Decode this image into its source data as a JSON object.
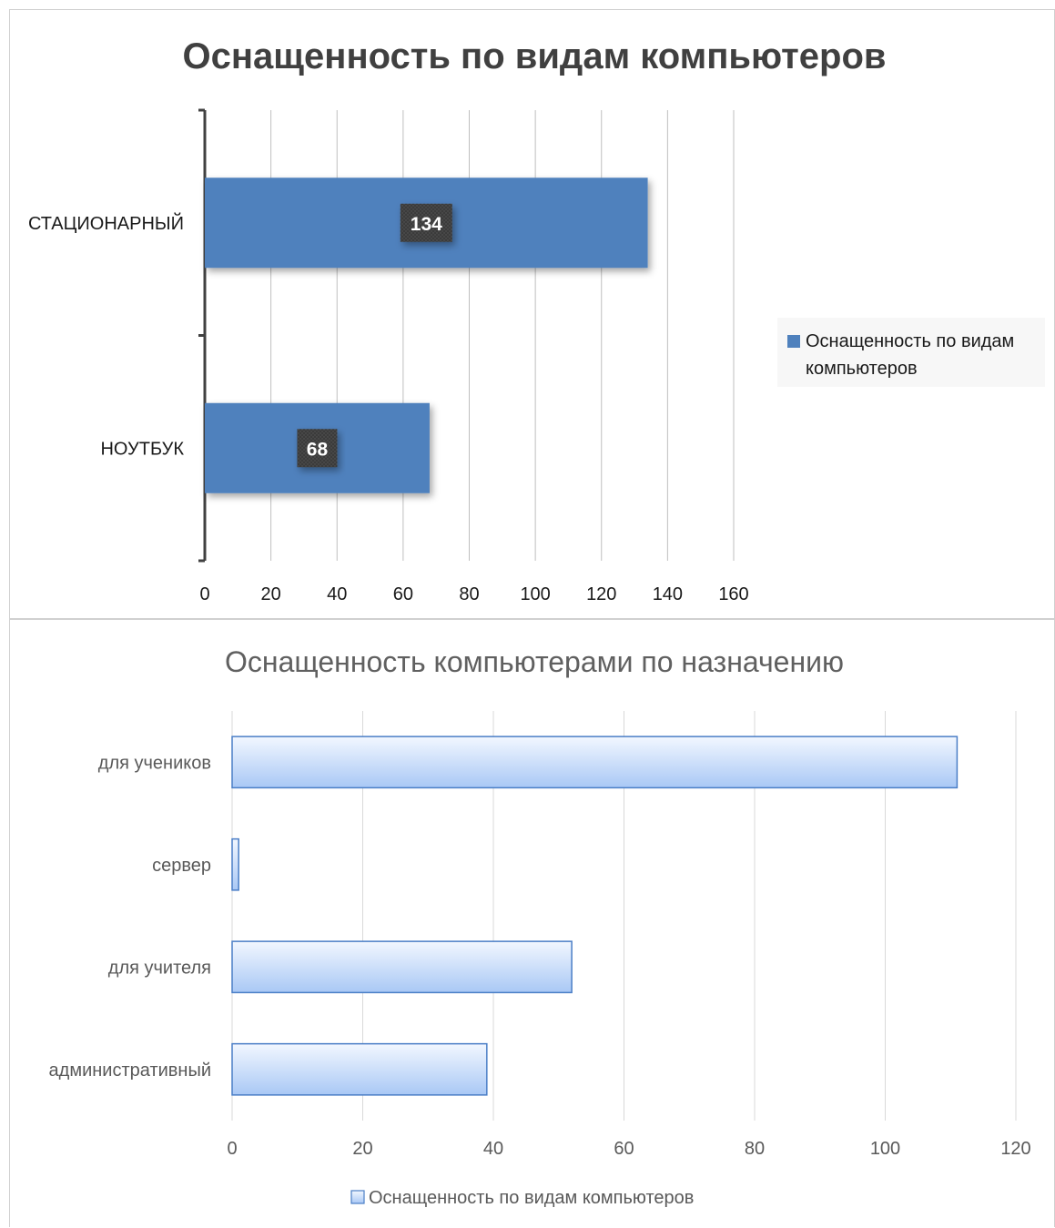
{
  "chart_data": [
    {
      "type": "bar",
      "orientation": "horizontal",
      "title": "Оснащенность по видам компьютеров",
      "categories": [
        "СТАЦИОНАРНЫЙ",
        "НОУТБУК"
      ],
      "series": [
        {
          "name": "Оснащенность по видам компьютеров",
          "values": [
            134,
            68
          ]
        }
      ],
      "data_labels": [
        "134",
        "68"
      ],
      "xlim": [
        0,
        160
      ],
      "xticks": [
        "0",
        "20",
        "40",
        "60",
        "80",
        "100",
        "120",
        "140",
        "160"
      ],
      "grid": true,
      "legend_position": "right",
      "colors": {
        "bar": "#4f81bd",
        "grid": "#bfbfbf",
        "label_bg": "#3a3a3a"
      }
    },
    {
      "type": "bar",
      "orientation": "horizontal",
      "title": "Оснащенность компьютерами по назначению",
      "categories": [
        "для учеников",
        "сервер",
        "для учителя",
        "административный"
      ],
      "series": [
        {
          "name": "Оснащенность по видам компьютеров",
          "values": [
            111,
            1,
            52,
            39
          ]
        }
      ],
      "xlim": [
        0,
        120
      ],
      "xticks": [
        "0",
        "20",
        "40",
        "60",
        "80",
        "100",
        "120"
      ],
      "grid": true,
      "legend_position": "bottom",
      "colors": {
        "bar_top": "#eef4ff",
        "bar_bottom": "#a9c8f5",
        "bar_border": "#4a7ec6",
        "grid": "#d9d9d9"
      }
    }
  ]
}
